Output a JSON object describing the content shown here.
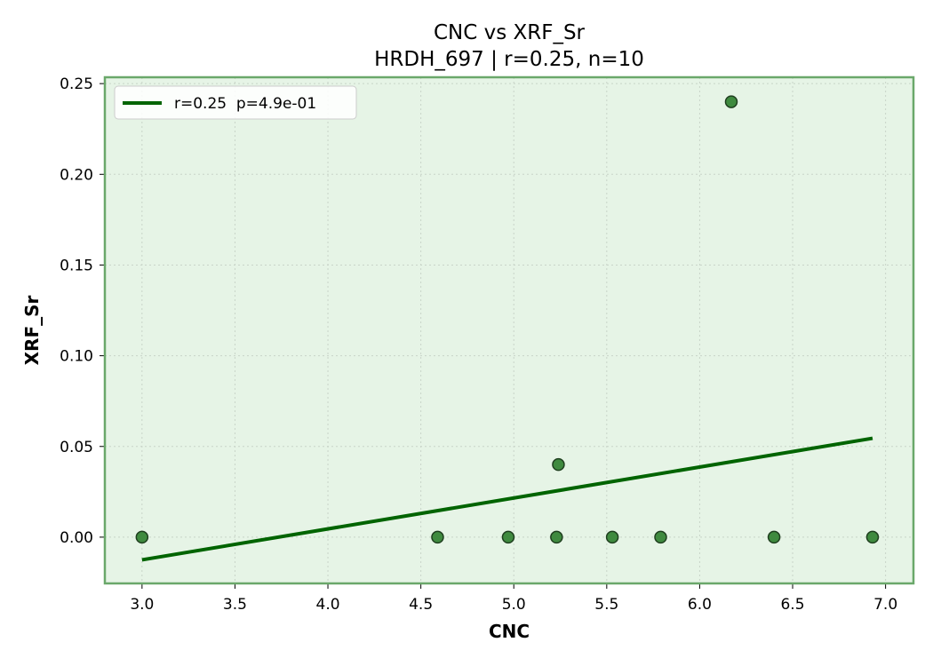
{
  "chart_data": {
    "type": "scatter",
    "title": "CNC vs XRF_Sr",
    "subtitle": "HRDH_697 | r=0.25, n=10",
    "xlabel": "CNC",
    "ylabel": "XRF_Sr",
    "xlim": [
      2.8,
      7.15
    ],
    "ylim": [
      -0.0255,
      0.2535
    ],
    "xticks": [
      "3.0",
      "3.5",
      "4.0",
      "4.5",
      "5.0",
      "5.5",
      "6.0",
      "6.5",
      "7.0"
    ],
    "yticks": [
      "0.00",
      "0.05",
      "0.10",
      "0.15",
      "0.20",
      "0.25"
    ],
    "grid": true,
    "legend_position": "top-left",
    "points": [
      {
        "x": 3.0,
        "y": 0.0
      },
      {
        "x": 4.59,
        "y": 0.0
      },
      {
        "x": 4.97,
        "y": 0.0
      },
      {
        "x": 5.23,
        "y": 0.0
      },
      {
        "x": 5.24,
        "y": 0.04
      },
      {
        "x": 5.53,
        "y": 0.0
      },
      {
        "x": 5.79,
        "y": 0.0
      },
      {
        "x": 6.17,
        "y": 0.24
      },
      {
        "x": 6.4,
        "y": 0.0
      },
      {
        "x": 6.93,
        "y": 0.0
      }
    ],
    "fit_line": {
      "label": "r=0.25  p=4.9e-01",
      "x": [
        3.0,
        6.93
      ],
      "y": [
        -0.0125,
        0.0545
      ]
    },
    "colors": {
      "plot_background": "#e6f4e6",
      "frame": "#6aa86a",
      "point_fill": "#3f8a3f",
      "point_edge": "#1f3f1f",
      "fit_line": "#006400",
      "grid": "#c8d4c8"
    }
  }
}
